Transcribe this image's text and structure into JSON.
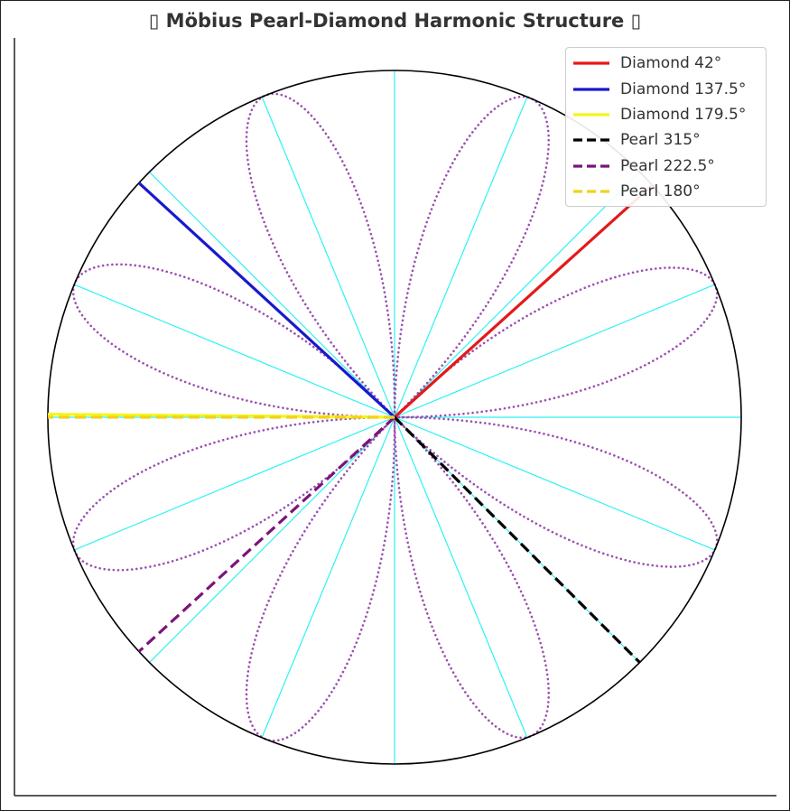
{
  "title": "▯ Möbius Pearl-Diamond Harmonic Structure ▯",
  "chart_data": {
    "type": "polar-diagram",
    "circle_radius": 1.0,
    "rose_petals": 8,
    "rose_color": "#9b4fb0",
    "ray_count": 16,
    "ray_color": "#2ef2f2",
    "lines": [
      {
        "name": "Diamond 42°",
        "angle_deg": 42,
        "length": 1.0,
        "color": "#e41a1a",
        "style": "solid"
      },
      {
        "name": "Diamond 137.5°",
        "angle_deg": 137.5,
        "length": 1.0,
        "color": "#1919cc",
        "style": "solid"
      },
      {
        "name": "Diamond 179.5°",
        "angle_deg": 179.5,
        "length": 1.0,
        "color": "#f5f51a",
        "style": "solid"
      },
      {
        "name": "Pearl 315°",
        "angle_deg": 315,
        "length": 1.0,
        "color": "#000000",
        "style": "dashed"
      },
      {
        "name": "Pearl 222.5°",
        "angle_deg": 222.5,
        "length": 1.0,
        "color": "#7a147a",
        "style": "dashed"
      },
      {
        "name": "Pearl 180°",
        "angle_deg": 180,
        "length": 1.0,
        "color": "#f2d21a",
        "style": "dashed"
      }
    ],
    "legend_position": "top-right"
  }
}
